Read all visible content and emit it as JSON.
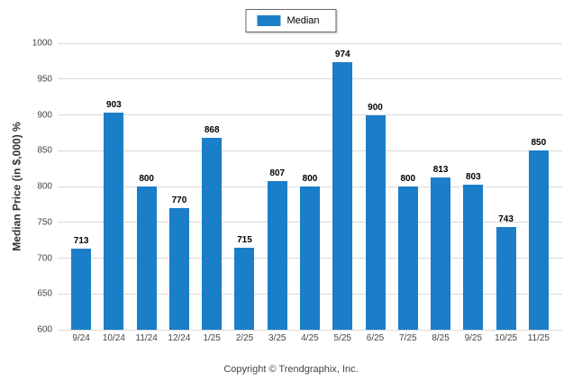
{
  "legend": {
    "label": "Median"
  },
  "footer": {
    "text": "Copyright © Trendgraphix, Inc."
  },
  "chart_data": {
    "type": "bar",
    "categories": [
      "9/24",
      "10/24",
      "11/24",
      "12/24",
      "1/25",
      "2/25",
      "3/25",
      "4/25",
      "5/25",
      "6/25",
      "7/25",
      "8/25",
      "9/25",
      "10/25",
      "11/25"
    ],
    "values": [
      713,
      903,
      800,
      770,
      868,
      715,
      807,
      800,
      974,
      900,
      800,
      813,
      803,
      743,
      850
    ],
    "title": "",
    "xlabel": "",
    "ylabel": "Median Price (in $,000) %",
    "ylim": [
      600,
      1000
    ],
    "ytick_step": 50,
    "yticks": [
      600,
      650,
      700,
      750,
      800,
      850,
      900,
      950,
      1000
    ],
    "bar_color": "#1b7ec8",
    "grid": true,
    "legend_entries": [
      "Median"
    ],
    "legend_position": "top"
  }
}
